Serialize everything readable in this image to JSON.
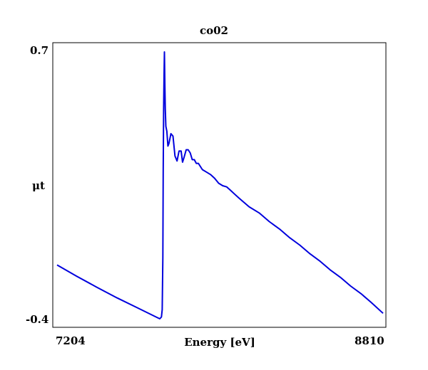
{
  "chart_data": {
    "type": "line",
    "title": "co02",
    "xlabel": "Energy [eV]",
    "ylabel": "μt",
    "xlim": [
      7204,
      8810
    ],
    "ylim": [
      -0.4,
      0.7
    ],
    "x_tick_labels": [
      "7204",
      "8810"
    ],
    "y_tick_labels": [
      "0.7",
      "-0.4"
    ],
    "grid": false,
    "line_color": "#0000dd",
    "series": [
      {
        "x": [
          7204,
          7300,
          7400,
          7500,
          7600,
          7700,
          7710,
          7718,
          7722,
          7725,
          7727,
          7729,
          7731,
          7733,
          7735,
          7737,
          7740,
          7745,
          7750,
          7755,
          7765,
          7775,
          7785,
          7795,
          7805,
          7815,
          7822,
          7830,
          7840,
          7850,
          7860,
          7870,
          7880,
          7890,
          7900,
          7920,
          7940,
          7960,
          7980,
          8000,
          8020,
          8040,
          8060,
          8080,
          8100,
          8150,
          8200,
          8250,
          8300,
          8350,
          8400,
          8450,
          8500,
          8550,
          8600,
          8650,
          8700,
          8750,
          8810
        ],
        "y": [
          -0.18,
          -0.225,
          -0.27,
          -0.313,
          -0.353,
          -0.393,
          -0.397,
          -0.39,
          -0.36,
          -0.15,
          0.2,
          0.45,
          0.59,
          0.68,
          0.55,
          0.45,
          0.38,
          0.36,
          0.3,
          0.31,
          0.35,
          0.34,
          0.26,
          0.24,
          0.28,
          0.28,
          0.235,
          0.255,
          0.285,
          0.285,
          0.272,
          0.245,
          0.245,
          0.23,
          0.23,
          0.205,
          0.195,
          0.185,
          0.17,
          0.15,
          0.14,
          0.135,
          0.12,
          0.105,
          0.09,
          0.055,
          0.03,
          -0.005,
          -0.035,
          -0.07,
          -0.1,
          -0.135,
          -0.165,
          -0.2,
          -0.23,
          -0.265,
          -0.295,
          -0.33,
          -0.375
        ]
      }
    ]
  }
}
